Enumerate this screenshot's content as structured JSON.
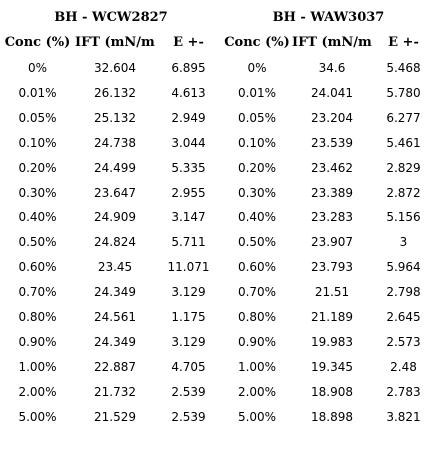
{
  "titles": {
    "left": "BH - WCW2827",
    "right": "BH - WAW3037"
  },
  "headers": [
    "Conc (%)",
    "IFT (mN/m)",
    "E +-",
    "Conc (%)",
    "IFT (mN/m)",
    "E +-"
  ],
  "rows": [
    [
      "0%",
      "32.604",
      "6.895",
      "0%",
      "34.6",
      "5.468"
    ],
    [
      "0.01%",
      "26.132",
      "4.613",
      "0.01%",
      "24.041",
      "5.780"
    ],
    [
      "0.05%",
      "25.132",
      "2.949",
      "0.05%",
      "23.204",
      "6.277"
    ],
    [
      "0.10%",
      "24.738",
      "3.044",
      "0.10%",
      "23.539",
      "5.461"
    ],
    [
      "0.20%",
      "24.499",
      "5.335",
      "0.20%",
      "23.462",
      "2.829"
    ],
    [
      "0.30%",
      "23.647",
      "2.955",
      "0.30%",
      "23.389",
      "2.872"
    ],
    [
      "0.40%",
      "24.909",
      "3.147",
      "0.40%",
      "23.283",
      "5.156"
    ],
    [
      "0.50%",
      "24.824",
      "5.711",
      "0.50%",
      "23.907",
      "3"
    ],
    [
      "0.60%",
      "23.45",
      "11.071",
      "0.60%",
      "23.793",
      "5.964"
    ],
    [
      "0.70%",
      "24.349",
      "3.129",
      "0.70%",
      "21.51",
      "2.798"
    ],
    [
      "0.80%",
      "24.561",
      "1.175",
      "0.80%",
      "21.189",
      "2.645"
    ],
    [
      "0.90%",
      "24.349",
      "3.129",
      "0.90%",
      "19.983",
      "2.573"
    ],
    [
      "1.00%",
      "22.887",
      "4.705",
      "1.00%",
      "19.345",
      "2.48"
    ],
    [
      "2.00%",
      "21.732",
      "2.539",
      "2.00%",
      "18.908",
      "2.783"
    ],
    [
      "5.00%",
      "21.529",
      "2.539",
      "5.00%",
      "18.898",
      "3.821"
    ]
  ]
}
